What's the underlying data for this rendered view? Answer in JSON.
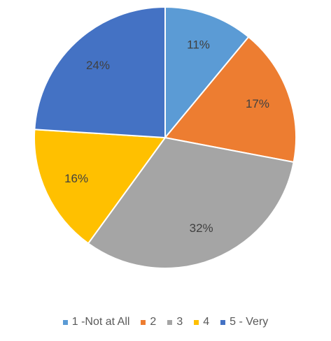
{
  "chart_data": {
    "type": "pie",
    "categories": [
      "1 -Not at All",
      "2",
      "3",
      "4",
      "5 - Very"
    ],
    "values": [
      11,
      17,
      32,
      16,
      24
    ],
    "value_labels": [
      "11%",
      "17%",
      "32%",
      "16%",
      "24%"
    ],
    "colors": [
      "#5b9bd5",
      "#ed7d31",
      "#a5a5a5",
      "#ffc000",
      "#4472c4"
    ],
    "legend": "bottom"
  }
}
